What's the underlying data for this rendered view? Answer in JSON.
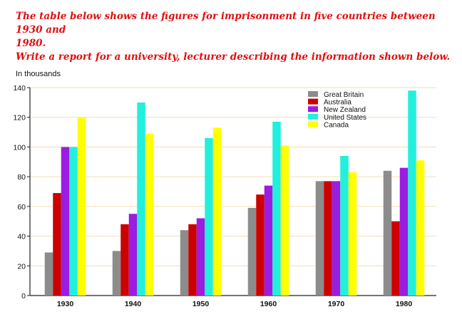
{
  "prompt": {
    "line1": "The table below shows the figures for imprisonment in five countries between 1930 and",
    "line2": "1980.",
    "line3": "Write a report for a university, lecturer describing the information shown below."
  },
  "chart_data": {
    "type": "bar",
    "ylabel": "In thousands",
    "ylim": [
      0,
      140
    ],
    "yticks": [
      0,
      20,
      40,
      60,
      80,
      100,
      120,
      140
    ],
    "grid": true,
    "legend_position": "top-right",
    "categories": [
      "1930",
      "1940",
      "1950",
      "1960",
      "1970",
      "1980"
    ],
    "series": [
      {
        "name": "Great Britain",
        "color": "#8c8c8c",
        "values": [
          29,
          30,
          44,
          59,
          77,
          84
        ]
      },
      {
        "name": "Australia",
        "color": "#cc0000",
        "values": [
          69,
          48,
          48,
          68,
          77,
          50
        ]
      },
      {
        "name": "New Zealand",
        "color": "#9b1de0",
        "values": [
          100,
          55,
          52,
          74,
          77,
          86
        ]
      },
      {
        "name": "United States",
        "color": "#22f0dc",
        "values": [
          100,
          130,
          106,
          117,
          94,
          138
        ]
      },
      {
        "name": "Canada",
        "color": "#ffff00",
        "values": [
          120,
          109,
          113,
          101,
          83,
          91
        ]
      }
    ]
  }
}
